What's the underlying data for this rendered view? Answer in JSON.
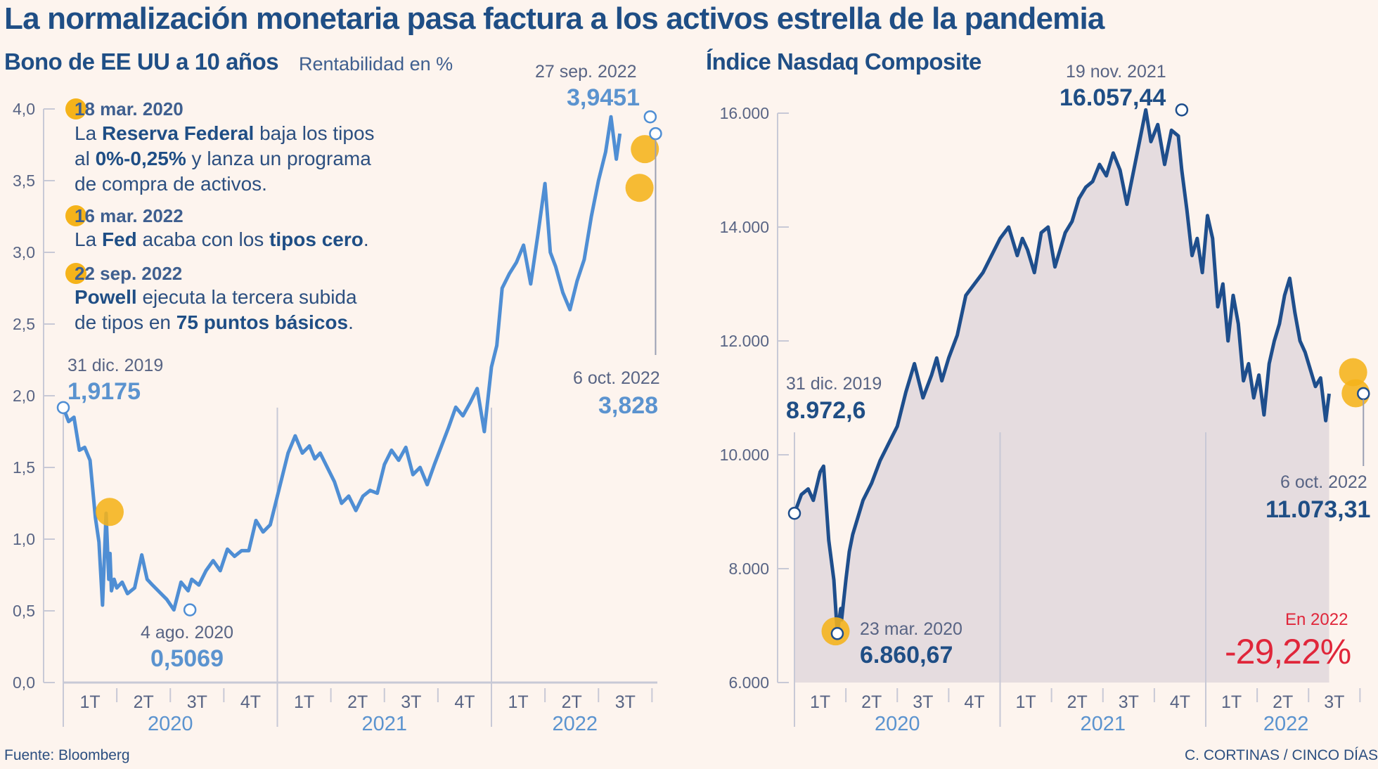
{
  "title": "La normalización monetaria pasa factura a los activos estrella de la pandemia",
  "source": "Fuente: Bloomberg",
  "credit": "C. CORTINAS / CINCO DÍAS",
  "colors": {
    "background": "#fdf4ee",
    "bond_line": "#4f8ed4",
    "nasdaq_line": "#1e4e8c",
    "highlight": "#f5b31a",
    "negative": "#e0263a",
    "axis": "#c8c9d6",
    "area_fill": "#dcd4da"
  },
  "notes": [
    {
      "date": "18 mar. 2020",
      "text_parts": [
        [
          "La ",
          false
        ],
        [
          "Reserva Federal",
          true
        ],
        [
          " baja los tipos",
          false
        ]
      ],
      "line2": [
        [
          "al ",
          false
        ],
        [
          "0%-0,25%",
          true
        ],
        [
          " y lanza un programa",
          false
        ]
      ],
      "line3": [
        [
          "de compra de activos.",
          false
        ]
      ]
    },
    {
      "date": "16 mar. 2022",
      "text_parts": [
        [
          "La ",
          false
        ],
        [
          "Fed",
          true
        ],
        [
          " acaba con los ",
          false
        ],
        [
          "tipos cero",
          true
        ],
        [
          ".",
          false
        ]
      ]
    },
    {
      "date": "22 sep. 2022",
      "text_parts": [
        [
          "Powell",
          true
        ],
        [
          " ejecuta la tercera subida",
          false
        ]
      ],
      "line2": [
        [
          "de tipos en ",
          false
        ],
        [
          "75 puntos básicos",
          true
        ],
        [
          ".",
          false
        ]
      ]
    }
  ],
  "chart_data": [
    {
      "type": "line",
      "title": "Bono de EE UU a 10 años",
      "subtitle": "Rentabilidad en %",
      "xlabel": "",
      "ylabel": "Rentabilidad en %",
      "ylim": [
        0,
        4
      ],
      "yticks": [
        "0,0",
        "0,5",
        "1,0",
        "1,5",
        "2,0",
        "2,5",
        "3,0",
        "3,5",
        "4,0"
      ],
      "ytick_values": [
        0,
        0.5,
        1,
        1.5,
        2,
        2.5,
        3,
        3.5,
        4
      ],
      "xlim_months": [
        0,
        9.2
      ],
      "quarters": [
        "1T",
        "2T",
        "3T",
        "4T",
        "1T",
        "2T",
        "3T",
        "4T",
        "1T",
        "2T",
        "3T"
      ],
      "years": [
        "2020",
        "2021",
        "2022"
      ],
      "grid": false,
      "x_months": [
        0,
        0.3,
        0.6,
        0.9,
        1.2,
        1.5,
        1.8,
        2.0,
        2.2,
        2.4,
        2.55,
        2.62,
        2.7,
        2.85,
        3.0,
        3.3,
        3.6,
        4.0,
        4.4,
        4.7,
        5.0,
        5.4,
        5.8,
        6.2,
        6.6,
        7.0,
        7.2,
        7.6,
        8.0,
        8.4,
        8.8,
        9.2,
        9.6,
        10.0,
        10.4,
        10.8,
        11.2,
        11.6,
        12.0,
        12.3,
        12.6,
        13.0,
        13.4,
        13.8,
        14.1,
        14.4,
        14.8,
        15.2,
        15.6,
        16.0,
        16.4,
        16.8,
        17.2,
        17.6,
        18.0,
        18.4,
        18.8,
        19.2,
        19.6,
        20.0,
        20.4,
        20.8,
        21.2,
        21.6,
        22.0,
        22.4,
        22.8,
        23.2,
        23.6,
        24.0,
        24.3,
        24.6,
        25.0,
        25.4,
        25.8,
        26.2,
        26.6,
        27.0,
        27.3,
        27.6,
        28.0,
        28.4,
        28.8,
        29.2,
        29.6,
        30.0,
        30.4,
        30.7,
        31.0,
        31.2
      ],
      "values": [
        1.9175,
        1.82,
        1.85,
        1.62,
        1.64,
        1.55,
        1.15,
        0.98,
        0.54,
        1.18,
        0.72,
        0.9,
        0.64,
        0.72,
        0.66,
        0.7,
        0.62,
        0.66,
        0.89,
        0.72,
        0.68,
        0.63,
        0.58,
        0.5069,
        0.7,
        0.64,
        0.72,
        0.68,
        0.78,
        0.85,
        0.78,
        0.93,
        0.88,
        0.92,
        0.92,
        1.13,
        1.05,
        1.1,
        1.3,
        1.45,
        1.6,
        1.72,
        1.6,
        1.65,
        1.56,
        1.6,
        1.5,
        1.4,
        1.25,
        1.3,
        1.2,
        1.3,
        1.34,
        1.32,
        1.52,
        1.62,
        1.55,
        1.64,
        1.45,
        1.5,
        1.38,
        1.52,
        1.65,
        1.78,
        1.92,
        1.86,
        1.95,
        2.05,
        1.75,
        2.2,
        2.35,
        2.75,
        2.85,
        2.93,
        3.05,
        2.78,
        3.12,
        3.48,
        3.0,
        2.9,
        2.72,
        2.6,
        2.8,
        2.95,
        3.25,
        3.5,
        3.7,
        3.9451,
        3.65,
        3.828
      ],
      "annotations": [
        {
          "label_date": "31 dic. 2019",
          "label_value": "1,9175",
          "x_month": 0,
          "value": 1.9175
        },
        {
          "label_date": "4 ago. 2020",
          "label_value": "0,5069",
          "x_month": 7.1,
          "value": 0.5069
        },
        {
          "label_date": "27 sep. 2022",
          "label_value": "3,9451",
          "x_month": 32.9,
          "value": 3.9451
        },
        {
          "label_date": "6 oct. 2022",
          "label_value": "3,828",
          "x_month": 33.2,
          "value": 3.828
        }
      ],
      "highlights": [
        {
          "event": "18 mar. 2020",
          "x_month": 2.6,
          "value": 1.19
        },
        {
          "event": "16 mar. 2022",
          "x_month": 32.3,
          "value": 3.45
        },
        {
          "event": "22 sep. 2022",
          "x_month": 32.6,
          "value": 3.72
        }
      ]
    },
    {
      "type": "area",
      "title": "Índice Nasdaq Composite",
      "xlabel": "",
      "ylabel": "",
      "ylim": [
        6000,
        16000
      ],
      "yticks": [
        "6.000",
        "8.000",
        "10.000",
        "12.000",
        "14.000",
        "16.000"
      ],
      "ytick_values": [
        6000,
        8000,
        10000,
        12000,
        14000,
        16000
      ],
      "quarters": [
        "1T",
        "2T",
        "3T",
        "4T",
        "1T",
        "2T",
        "3T",
        "4T",
        "1T",
        "2T",
        "3T"
      ],
      "years": [
        "2020",
        "2021",
        "2022"
      ],
      "grid": false,
      "x_months": [
        0,
        0.4,
        0.8,
        1.1,
        1.5,
        1.7,
        2.0,
        2.3,
        2.5,
        2.7,
        2.75,
        3.0,
        3.2,
        3.4,
        3.7,
        4.0,
        4.5,
        5.0,
        5.5,
        6.0,
        6.5,
        7.0,
        7.5,
        8.0,
        8.3,
        8.6,
        9.0,
        9.5,
        10.0,
        10.5,
        11.0,
        11.5,
        12.0,
        12.5,
        13.0,
        13.3,
        13.6,
        14.0,
        14.4,
        14.8,
        15.2,
        15.5,
        15.8,
        16.2,
        16.6,
        17.0,
        17.4,
        17.8,
        18.2,
        18.6,
        19.0,
        19.4,
        19.8,
        20.2,
        20.5,
        20.8,
        21.2,
        21.6,
        22.0,
        22.4,
        22.6,
        22.9,
        23.2,
        23.5,
        23.8,
        24.1,
        24.4,
        24.7,
        25.0,
        25.3,
        25.6,
        25.9,
        26.2,
        26.5,
        26.8,
        27.1,
        27.4,
        27.7,
        28.0,
        28.3,
        28.6,
        28.9,
        29.2,
        29.5,
        29.8,
        30.1,
        30.4,
        30.7,
        31.0,
        31.2
      ],
      "values": [
        8972.6,
        9300,
        9400,
        9200,
        9700,
        9800,
        8500,
        7800,
        6860.67,
        7300,
        7100,
        7800,
        8300,
        8600,
        8900,
        9200,
        9500,
        9900,
        10200,
        10500,
        11100,
        11600,
        11000,
        11400,
        11700,
        11300,
        11700,
        12100,
        12800,
        13000,
        13200,
        13500,
        13800,
        14000,
        13500,
        13800,
        13600,
        13200,
        13900,
        14000,
        13300,
        13600,
        13900,
        14100,
        14500,
        14700,
        14800,
        15100,
        14900,
        15300,
        15000,
        14400,
        15000,
        15600,
        16057.44,
        15500,
        15800,
        15100,
        15700,
        15600,
        15000,
        14300,
        13500,
        13800,
        13200,
        14200,
        13800,
        12600,
        13000,
        12000,
        12800,
        12300,
        11300,
        11600,
        11000,
        11400,
        10700,
        11600,
        12000,
        12300,
        12800,
        13100,
        12500,
        12000,
        11800,
        11500,
        11200,
        11350,
        10600,
        11073.31
      ],
      "annotations": [
        {
          "label_date": "31 dic. 2019",
          "label_value": "8.972,6",
          "x_month": 0,
          "value": 8972.6
        },
        {
          "label_date": "23 mar. 2020",
          "label_value": "6.860,67",
          "x_month": 2.5,
          "value": 6860.67
        },
        {
          "label_date": "19 nov. 2021",
          "label_value": "16.057,44",
          "x_month": 22.6,
          "value": 16057.44
        },
        {
          "label_date": "6 oct. 2022",
          "label_value": "11.073,31",
          "x_month": 33.2,
          "value": 11073.31
        }
      ],
      "highlights": [
        {
          "event": "18 mar. 2020",
          "x_month": 2.4,
          "value": 6900
        },
        {
          "event": "16 mar. 2022",
          "x_month": 32.6,
          "value": 11450
        },
        {
          "event": "22 sep. 2022",
          "x_month": 32.75,
          "value": 11080
        }
      ],
      "change_label": "En 2022",
      "change_value": "-29,22%"
    }
  ]
}
